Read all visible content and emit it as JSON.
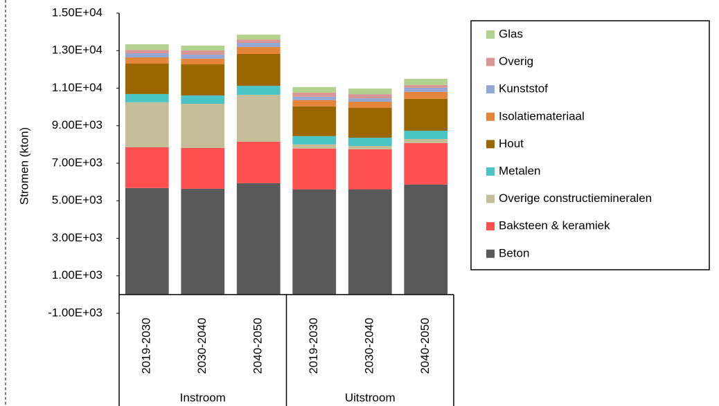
{
  "chart_data": {
    "type": "stacked_bar",
    "y_label": "Stromen (kton)",
    "groups": [
      {
        "name": "Instroom",
        "categories": [
          "2019-2030",
          "2030-2040",
          "2040-2050"
        ]
      },
      {
        "name": "Uitstroom",
        "categories": [
          "2019-2030",
          "2030-2040",
          "2040-2050"
        ]
      }
    ],
    "series": [
      {
        "name": "Beton",
        "color": "#595959",
        "values": [
          5680,
          5640,
          5935,
          5604,
          5600,
          5862
        ]
      },
      {
        "name": "Baksteen & keramiek",
        "color": "#ff5050",
        "values": [
          2170,
          2170,
          2210,
          2180,
          2140,
          2210
        ]
      },
      {
        "name": "Overige constructiemineralen",
        "color": "#c4bd97",
        "values": [
          2400,
          2360,
          2500,
          220,
          180,
          220
        ]
      },
      {
        "name": "Metalen",
        "color": "#4bc4c6",
        "values": [
          440,
          440,
          480,
          440,
          440,
          440
        ]
      },
      {
        "name": "Hout",
        "color": "#996600",
        "values": [
          1620,
          1660,
          1700,
          1590,
          1590,
          1700
        ]
      },
      {
        "name": "Isolatiemateriaal",
        "color": "#e5853a",
        "values": [
          330,
          300,
          370,
          330,
          330,
          370
        ]
      },
      {
        "name": "Kunststof",
        "color": "#95a8d4",
        "values": [
          220,
          220,
          220,
          180,
          180,
          220
        ]
      },
      {
        "name": "Overig",
        "color": "#d99694",
        "values": [
          180,
          220,
          180,
          220,
          220,
          150
        ]
      },
      {
        "name": "Glas",
        "color": "#b3d18f",
        "values": [
          300,
          260,
          260,
          300,
          300,
          330
        ]
      }
    ],
    "ylim": [
      -1000,
      15000
    ],
    "yticks": [
      {
        "value": -1000,
        "label": "-1.00E+03"
      },
      {
        "value": 1000,
        "label": "1.00E+03"
      },
      {
        "value": 3000,
        "label": "3.00E+03"
      },
      {
        "value": 5000,
        "label": "5.00E+03"
      },
      {
        "value": 7000,
        "label": "7.00E+03"
      },
      {
        "value": 9000,
        "label": "9.00E+03"
      },
      {
        "value": 11000,
        "label": "1.10E+04"
      },
      {
        "value": 13000,
        "label": "1.30E+04"
      },
      {
        "value": 15000,
        "label": "1.50E+04"
      }
    ],
    "legend": "right"
  }
}
